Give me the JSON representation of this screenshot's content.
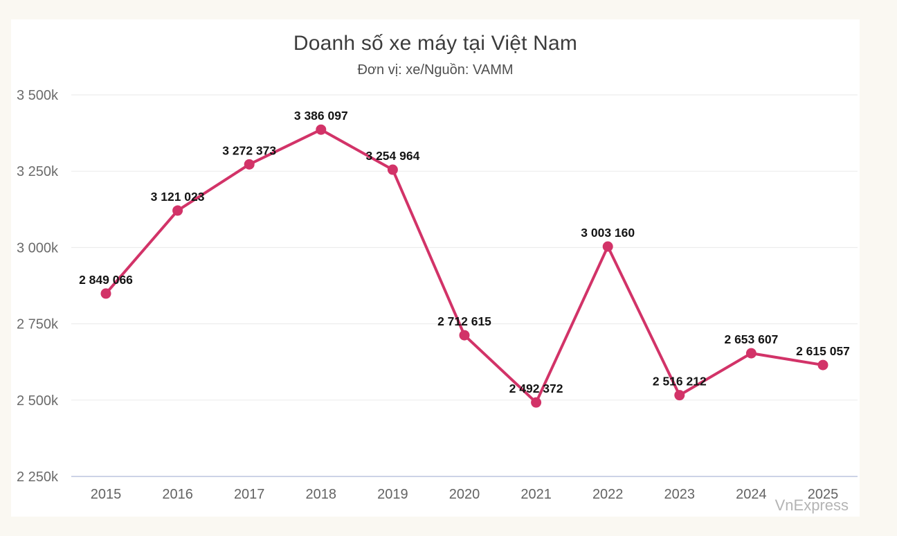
{
  "chart_data": {
    "type": "line",
    "title": "Doanh số xe máy tại Việt Nam",
    "subtitle": "Đơn vị: xe/Nguồn: VAMM",
    "categories": [
      "2015",
      "2016",
      "2017",
      "2018",
      "2019",
      "2020",
      "2021",
      "2022",
      "2023",
      "2024",
      "2025"
    ],
    "values": [
      2849066,
      3121023,
      3272373,
      3386097,
      3254964,
      2712615,
      2492372,
      3003160,
      2516212,
      2653607,
      2615057
    ],
    "point_labels": [
      "2 849 066",
      "3 121 023",
      "3 272 373",
      "3 386 097",
      "3 254 964",
      "2 712 615",
      "2 492 372",
      "3 003 160",
      "2 516 212",
      "2 653 607",
      "2 615 057"
    ],
    "xlabel": "",
    "ylabel": "",
    "ylim": [
      2250000,
      3500000
    ],
    "ytick_step": 250000,
    "ytick_labels": [
      "2 250k",
      "2 500k",
      "2 750k",
      "3 000k",
      "3 250k",
      "3 500k"
    ],
    "grid": true,
    "legend": false,
    "line_color": "#d23368",
    "marker_color": "#d23368",
    "grid_color": "#eaeaea",
    "axis_line_color": "#ccd3e6",
    "page_background": "#faf8f2",
    "card_background": "#ffffff",
    "watermark": "VnExpress"
  }
}
